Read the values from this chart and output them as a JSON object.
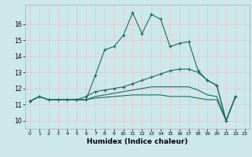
{
  "xlabel": "Humidex (Indice chaleur)",
  "background_color": "#cce8eb",
  "grid_color": "#e8c8c8",
  "line_color": "#1a6b5e",
  "xlim": [
    -0.5,
    23.5
  ],
  "ylim": [
    9.5,
    17.2
  ],
  "xticks": [
    0,
    1,
    2,
    3,
    4,
    5,
    6,
    7,
    8,
    9,
    10,
    11,
    12,
    13,
    14,
    15,
    16,
    17,
    18,
    19,
    20,
    21,
    22,
    23
  ],
  "yticks": [
    10,
    11,
    12,
    13,
    14,
    15,
    16
  ],
  "line1_x": [
    0,
    1,
    2,
    3,
    4,
    5,
    6,
    7,
    8,
    9,
    10,
    11,
    12,
    13,
    14,
    15,
    16,
    17,
    18,
    19,
    20,
    21,
    22
  ],
  "line1_y": [
    11.2,
    11.5,
    11.3,
    11.3,
    11.3,
    11.3,
    11.3,
    12.8,
    14.4,
    14.6,
    15.3,
    16.7,
    15.4,
    16.6,
    16.3,
    14.6,
    14.8,
    14.9,
    13.1,
    12.5,
    12.2,
    10.0,
    11.5
  ],
  "line2_x": [
    0,
    1,
    2,
    3,
    4,
    5,
    6,
    7,
    8,
    9,
    10,
    11,
    12,
    13,
    14,
    15,
    16,
    17,
    18,
    19,
    20,
    21,
    22
  ],
  "line2_y": [
    11.2,
    11.5,
    11.3,
    11.3,
    11.3,
    11.3,
    11.5,
    11.8,
    11.9,
    12.0,
    12.1,
    12.3,
    12.5,
    12.7,
    12.9,
    13.1,
    13.2,
    13.2,
    13.0,
    12.5,
    12.2,
    10.0,
    11.5
  ],
  "line3_x": [
    0,
    1,
    2,
    3,
    4,
    5,
    6,
    7,
    8,
    9,
    10,
    11,
    12,
    13,
    14,
    15,
    16,
    17,
    18,
    19,
    20,
    21,
    22
  ],
  "line3_y": [
    11.2,
    11.5,
    11.3,
    11.3,
    11.3,
    11.3,
    11.3,
    11.5,
    11.6,
    11.7,
    11.8,
    11.9,
    12.0,
    12.1,
    12.1,
    12.1,
    12.1,
    12.1,
    11.9,
    11.6,
    11.5,
    10.0,
    11.5
  ],
  "line4_x": [
    0,
    1,
    2,
    3,
    4,
    5,
    6,
    7,
    8,
    9,
    10,
    11,
    12,
    13,
    14,
    15,
    16,
    17,
    18,
    19,
    20,
    21,
    22
  ],
  "line4_y": [
    11.2,
    11.5,
    11.3,
    11.3,
    11.3,
    11.3,
    11.3,
    11.4,
    11.45,
    11.5,
    11.55,
    11.6,
    11.6,
    11.6,
    11.6,
    11.5,
    11.5,
    11.5,
    11.4,
    11.3,
    11.3,
    10.0,
    11.5
  ]
}
